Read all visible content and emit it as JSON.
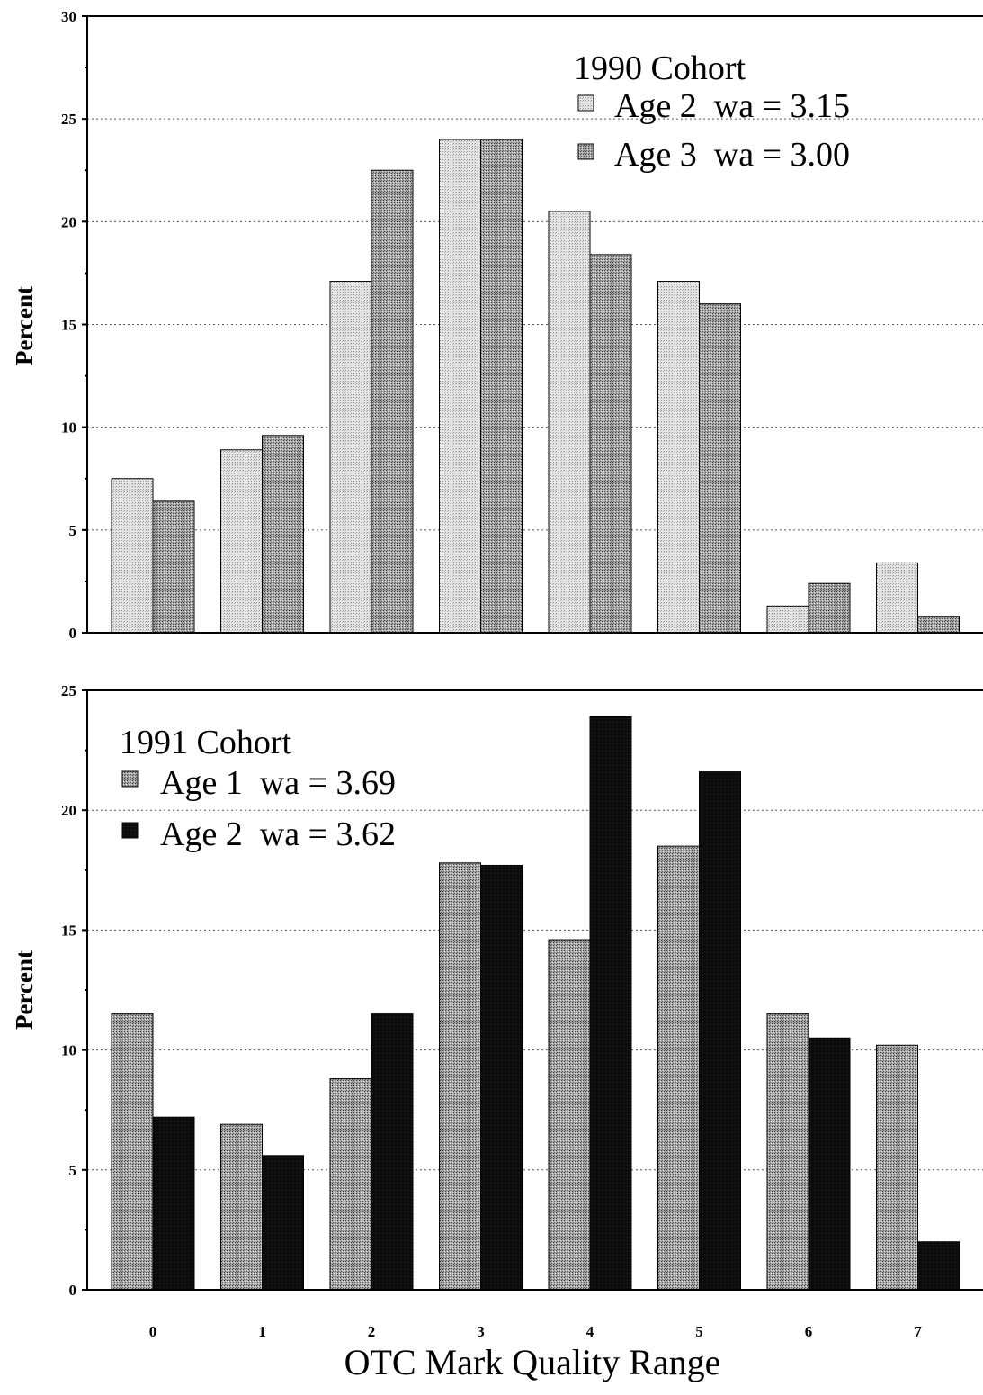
{
  "colors": {
    "light_fill": "#d8d8d8",
    "medium_fill": "#8e8e8e",
    "dark_fill": "#0c0c0c",
    "axis": "#000000"
  },
  "chart_data": [
    {
      "type": "bar",
      "categories": [
        "0",
        "1",
        "2",
        "3",
        "4",
        "5",
        "6",
        "7"
      ],
      "ylabel": "Percent",
      "xlabel": "",
      "ylim": [
        0,
        30
      ],
      "yticks": [
        0,
        5,
        10,
        15,
        20,
        25,
        30
      ],
      "grid": "horizontal-dotted",
      "legend_title": "1990 Cohort",
      "legend_placement": "top-right",
      "series": [
        {
          "name": "Age 2  wa = 3.15",
          "fill": "light",
          "values": [
            7.5,
            8.9,
            17.1,
            24.0,
            20.5,
            17.1,
            1.3,
            3.4
          ]
        },
        {
          "name": "Age 3  wa = 3.00",
          "fill": "medium",
          "values": [
            6.4,
            9.6,
            22.5,
            24.0,
            18.4,
            16.0,
            2.4,
            0.8
          ]
        }
      ]
    },
    {
      "type": "bar",
      "categories": [
        "0",
        "1",
        "2",
        "3",
        "4",
        "5",
        "6",
        "7"
      ],
      "ylabel": "Percent",
      "xlabel": "OTC Mark Quality Range",
      "ylim": [
        0,
        25
      ],
      "yticks": [
        0,
        5,
        10,
        15,
        20,
        25
      ],
      "grid": "horizontal-dotted",
      "legend_title": "1991 Cohort",
      "legend_placement": "top-left",
      "series": [
        {
          "name": "Age 1  wa = 3.69",
          "fill": "medium",
          "values": [
            11.5,
            6.9,
            8.8,
            17.8,
            14.6,
            18.5,
            11.5,
            10.2
          ]
        },
        {
          "name": "Age 2  wa = 3.62",
          "fill": "dark",
          "values": [
            7.2,
            5.6,
            11.5,
            17.7,
            23.9,
            21.6,
            10.5,
            2.0
          ]
        }
      ]
    }
  ]
}
